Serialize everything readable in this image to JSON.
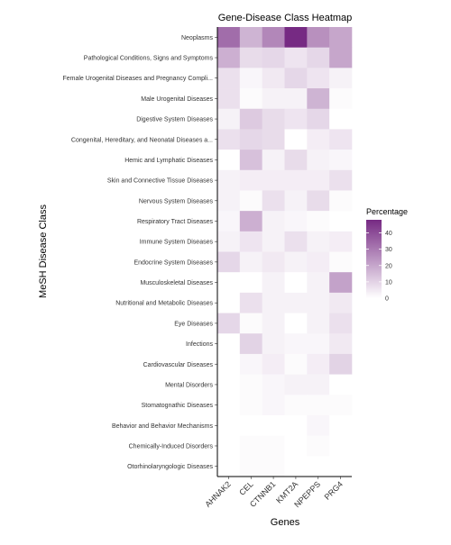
{
  "chart_data": {
    "type": "heatmap",
    "title": "Gene-Disease Class Heatmap",
    "xlabel": "Genes",
    "ylabel": "MeSH Disease Class",
    "x_categories": [
      "AHNAK2",
      "CEL",
      "CTNNB1",
      "KMT2A",
      "NPEPPS",
      "PRG4"
    ],
    "y_categories": [
      "Neoplasms",
      "Pathological Conditions, Signs and Symptoms",
      "Female Urogenital Diseases and Pregnancy Compli...",
      "Male Urogenital Diseases",
      "Digestive System Diseases",
      "Congenital, Hereditary, and Neonatal Diseases a...",
      "Hemic and Lymphatic Diseases",
      "Skin and Connective Tissue Diseases",
      "Nervous System Diseases",
      "Respiratory Tract Diseases",
      "Immune System Diseases",
      "Endocrine System Diseases",
      "Musculoskeletal Diseases",
      "Nutritional and Metabolic Diseases",
      "Eye Diseases",
      "Infections",
      "Cardiovascular Diseases",
      "Mental Disorders",
      "Stomatognathic Diseases",
      "Behavior and Behavior Mechanisms",
      "Chemically-Induced Disorders",
      "Otorhinolaryngologic Diseases"
    ],
    "values": [
      [
        33,
        17,
        27,
        48,
        25,
        20
      ],
      [
        18,
        8,
        9,
        6,
        9,
        20
      ],
      [
        7,
        2,
        5,
        9,
        6,
        3
      ],
      [
        7,
        1,
        3,
        3,
        17,
        1
      ],
      [
        3,
        12,
        8,
        6,
        9,
        0
      ],
      [
        7,
        9,
        8,
        0,
        4,
        6
      ],
      [
        0,
        14,
        3,
        8,
        3,
        2
      ],
      [
        3,
        4,
        4,
        4,
        4,
        7
      ],
      [
        3,
        1,
        7,
        3,
        8,
        1
      ],
      [
        2,
        18,
        3,
        2,
        1,
        0
      ],
      [
        3,
        6,
        3,
        7,
        3,
        4
      ],
      [
        9,
        3,
        5,
        3,
        4,
        1
      ],
      [
        0,
        0,
        3,
        0,
        3,
        21
      ],
      [
        0,
        7,
        3,
        3,
        3,
        5
      ],
      [
        9,
        1,
        3,
        0,
        3,
        7
      ],
      [
        0,
        10,
        3,
        2,
        2,
        5
      ],
      [
        0,
        2,
        4,
        1,
        4,
        10
      ],
      [
        0,
        1,
        2,
        3,
        3,
        0
      ],
      [
        0,
        1,
        2,
        1,
        1,
        1
      ],
      [
        0,
        0,
        0,
        0,
        2,
        0
      ],
      [
        0,
        1,
        1,
        0,
        1,
        0
      ],
      [
        0,
        1,
        1,
        0,
        0,
        0
      ]
    ],
    "color_scale": {
      "low": "#ffffff",
      "high": "#762a83",
      "min": 0,
      "max": 48
    },
    "legend": {
      "title": "Percentage",
      "ticks": [
        0,
        10,
        20,
        30,
        40
      ],
      "placement": "right"
    },
    "grid": false
  }
}
